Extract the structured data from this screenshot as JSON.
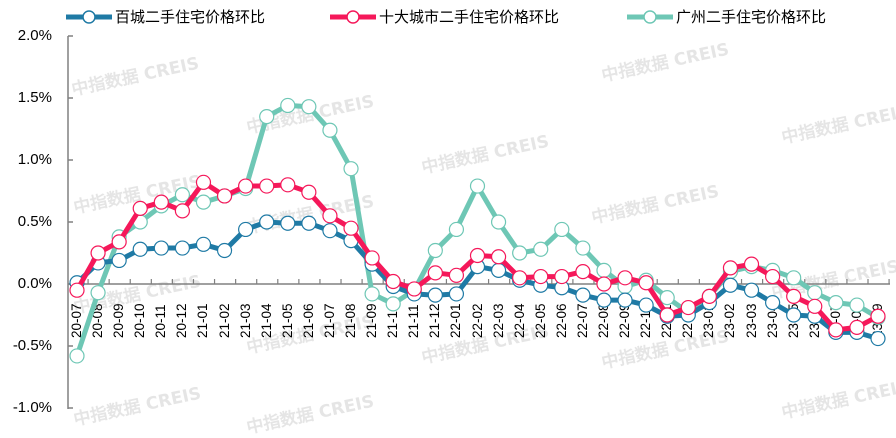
{
  "chart_data": {
    "type": "line",
    "title": "",
    "xlabel": "",
    "ylabel": "",
    "ylim": [
      -1.0,
      2.0
    ],
    "yticks": [
      "2.0%",
      "1.5%",
      "1.0%",
      "0.5%",
      "0.0%",
      "-0.5%",
      "-1.0%"
    ],
    "grid": false,
    "legend_position": "top",
    "categories": [
      "20-07",
      "20-08",
      "20-09",
      "20-10",
      "20-11",
      "20-12",
      "21-01",
      "21-02",
      "21-03",
      "21-04",
      "21-05",
      "21-06",
      "21-07",
      "21-08",
      "21-09",
      "21-10",
      "21-11",
      "21-12",
      "22-01",
      "22-02",
      "22-03",
      "22-04",
      "22-05",
      "22-06",
      "22-07",
      "22-08",
      "22-09",
      "22-10",
      "22-11",
      "22-12",
      "23-01",
      "23-02",
      "23-03",
      "23-04",
      "23-05",
      "23-06",
      "23-07",
      "23-08",
      "23-09"
    ],
    "series": [
      {
        "name": "百城二手住宅价格环比",
        "color": "#1F7AA5",
        "values": [
          0.01,
          0.17,
          0.19,
          0.28,
          0.29,
          0.29,
          0.32,
          0.27,
          0.44,
          0.5,
          0.49,
          0.49,
          0.43,
          0.35,
          0.16,
          -0.02,
          -0.08,
          -0.09,
          -0.08,
          0.14,
          0.11,
          0.03,
          -0.01,
          -0.03,
          -0.09,
          -0.13,
          -0.13,
          -0.17,
          -0.26,
          -0.25,
          -0.15,
          -0.01,
          -0.05,
          -0.15,
          -0.25,
          -0.26,
          -0.39,
          -0.39,
          -0.44
        ]
      },
      {
        "name": "十大城市二手住宅价格环比",
        "color": "#F5185A",
        "values": [
          -0.05,
          0.25,
          0.34,
          0.61,
          0.66,
          0.59,
          0.82,
          0.71,
          0.79,
          0.79,
          0.8,
          0.74,
          0.55,
          0.45,
          0.21,
          0.02,
          -0.04,
          0.09,
          0.07,
          0.23,
          0.22,
          0.05,
          0.06,
          0.06,
          0.1,
          0.0,
          0.05,
          0.01,
          -0.25,
          -0.19,
          -0.1,
          0.13,
          0.16,
          0.06,
          -0.1,
          -0.18,
          -0.37,
          -0.35,
          -0.26
        ]
      },
      {
        "name": "广州二手住宅价格环比",
        "color": "#6EC7B5",
        "values": [
          -0.58,
          -0.07,
          0.38,
          0.5,
          0.63,
          0.72,
          0.66,
          0.71,
          0.77,
          1.35,
          1.44,
          1.43,
          1.24,
          0.93,
          -0.08,
          -0.16,
          -0.05,
          0.27,
          0.44,
          0.79,
          0.5,
          0.25,
          0.28,
          0.44,
          0.29,
          0.11,
          -0.02,
          0.03,
          -0.11,
          -0.23,
          -0.1,
          0.1,
          0.14,
          0.11,
          0.05,
          -0.07,
          -0.15,
          -0.17,
          -0.27
        ]
      }
    ]
  },
  "legend": {
    "items": [
      {
        "label": "百城二手住宅价格环比",
        "color": "#1F7AA5"
      },
      {
        "label": "十大城市二手住宅价格环比",
        "color": "#F5185A"
      },
      {
        "label": "广州二手住宅价格环比",
        "color": "#6EC7B5"
      }
    ]
  },
  "watermark": {
    "text": "中指数据 CREIS"
  }
}
